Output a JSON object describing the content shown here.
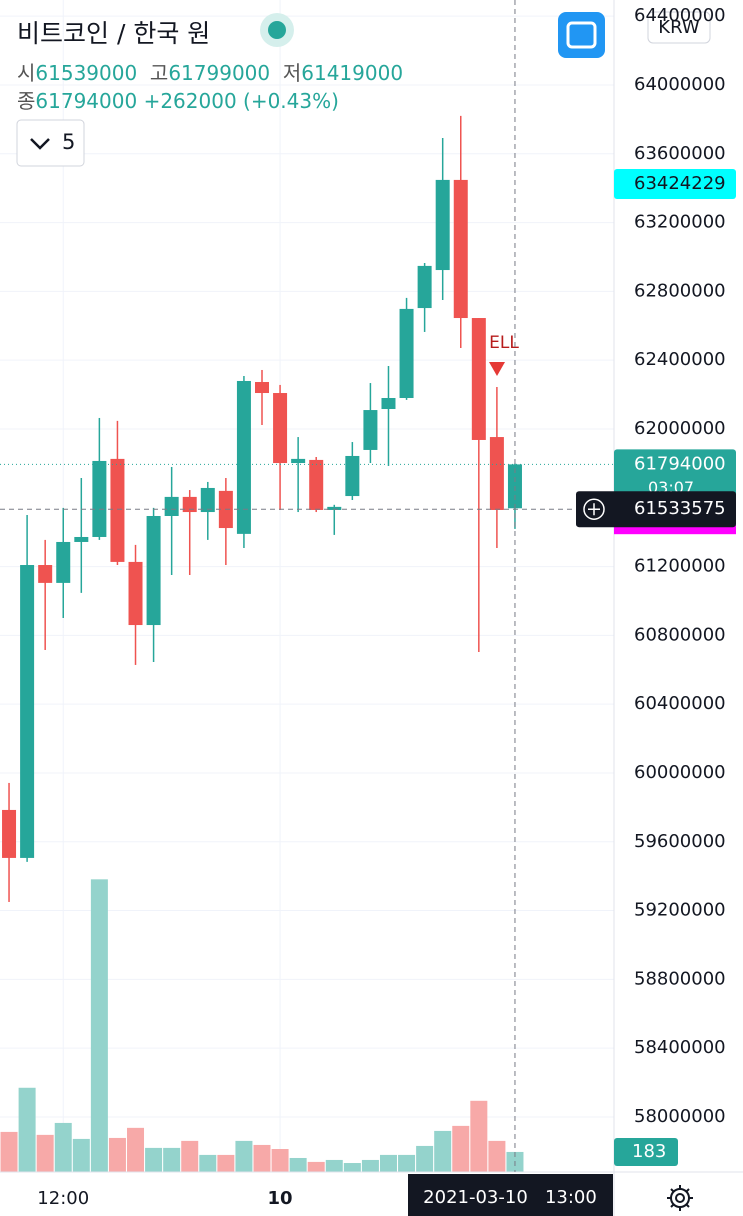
{
  "chart_data": {
    "type": "candlestick",
    "title": "비트코인 / 한국 원",
    "currency": "KRW",
    "interval": "5",
    "ohlc_labels": {
      "open": "시",
      "high": "고",
      "low": "저",
      "close": "종"
    },
    "change": "+262000 (+0.43%)",
    "annotation": "ELL",
    "categories": [
      null,
      null,
      null,
      "12:00",
      null,
      null,
      null,
      null,
      null,
      null,
      null,
      null,
      null,
      null,
      null,
      "10",
      null,
      null,
      null,
      null,
      null,
      null,
      null,
      null,
      null,
      null,
      null,
      null,
      "2021-03-10   13:00"
    ],
    "open": [
      59785000,
      59506000,
      61209000,
      61105000,
      61343000,
      61372000,
      61826000,
      61227000,
      60860000,
      61494000,
      61605000,
      61517000,
      61640000,
      61390000,
      62273000,
      62209000,
      61802000,
      61820000,
      61529000,
      61610000,
      61878000,
      62116000,
      62180000,
      62703000,
      62924000,
      63448000,
      62645000,
      61953000,
      61539000
    ],
    "high": [
      59942000,
      61500000,
      61355000,
      61541000,
      61715000,
      62064000,
      62047000,
      61326000,
      61541000,
      61779000,
      61645000,
      61692000,
      61715000,
      62308000,
      62343000,
      62256000,
      61953000,
      61837000,
      61559000,
      61924000,
      62267000,
      62366000,
      62762000,
      62965000,
      63692000,
      63820000,
      62645000,
      62244000,
      61799000
    ],
    "low": [
      59250000,
      59483000,
      60715000,
      60901000,
      61047000,
      61355000,
      61209000,
      60628000,
      60645000,
      61151000,
      61151000,
      61355000,
      61209000,
      61308000,
      62023000,
      61529000,
      61517000,
      61517000,
      61384000,
      61587000,
      61802000,
      61785000,
      62169000,
      62564000,
      62750000,
      62471000,
      60703000,
      61308000,
      61419000
    ],
    "close": [
      59506000,
      61209000,
      61105000,
      61343000,
      61372000,
      61814000,
      61227000,
      60860000,
      61494000,
      61605000,
      61517000,
      61657000,
      61424000,
      62279000,
      62209000,
      61802000,
      61826000,
      61529000,
      61547000,
      61843000,
      62110000,
      62180000,
      62698000,
      62948000,
      63448000,
      62645000,
      61936000,
      61529000,
      61794000
    ],
    "volume": [
      366,
      769,
      339,
      448,
      302,
      2672,
      311,
      403,
      220,
      220,
      284,
      156,
      156,
      284,
      247,
      210,
      128,
      92,
      110,
      82,
      110,
      156,
      156,
      238,
      375,
      421,
      650,
      284,
      183
    ],
    "up_color": "#26a69a",
    "down_color": "#ef5350",
    "volume_up_color": "#94d3cc",
    "volume_down_color": "#f7a9a8",
    "ylim": [
      57680000,
      64494000
    ],
    "yticks": [
      58000000,
      58400000,
      58800000,
      59200000,
      59600000,
      60000000,
      60400000,
      60800000,
      61200000,
      62000000,
      62400000,
      62800000,
      63200000,
      63600000,
      64000000,
      64400000
    ],
    "y2lim": [
      0,
      10700
    ],
    "grid": true,
    "price_labels": [
      {
        "value": 63424229,
        "color": "#00ffff"
      },
      {
        "value": 61794000,
        "color": "#26a69a",
        "sublabel": "03:07"
      },
      {
        "value": 61533575,
        "color": "#131722"
      }
    ]
  }
}
